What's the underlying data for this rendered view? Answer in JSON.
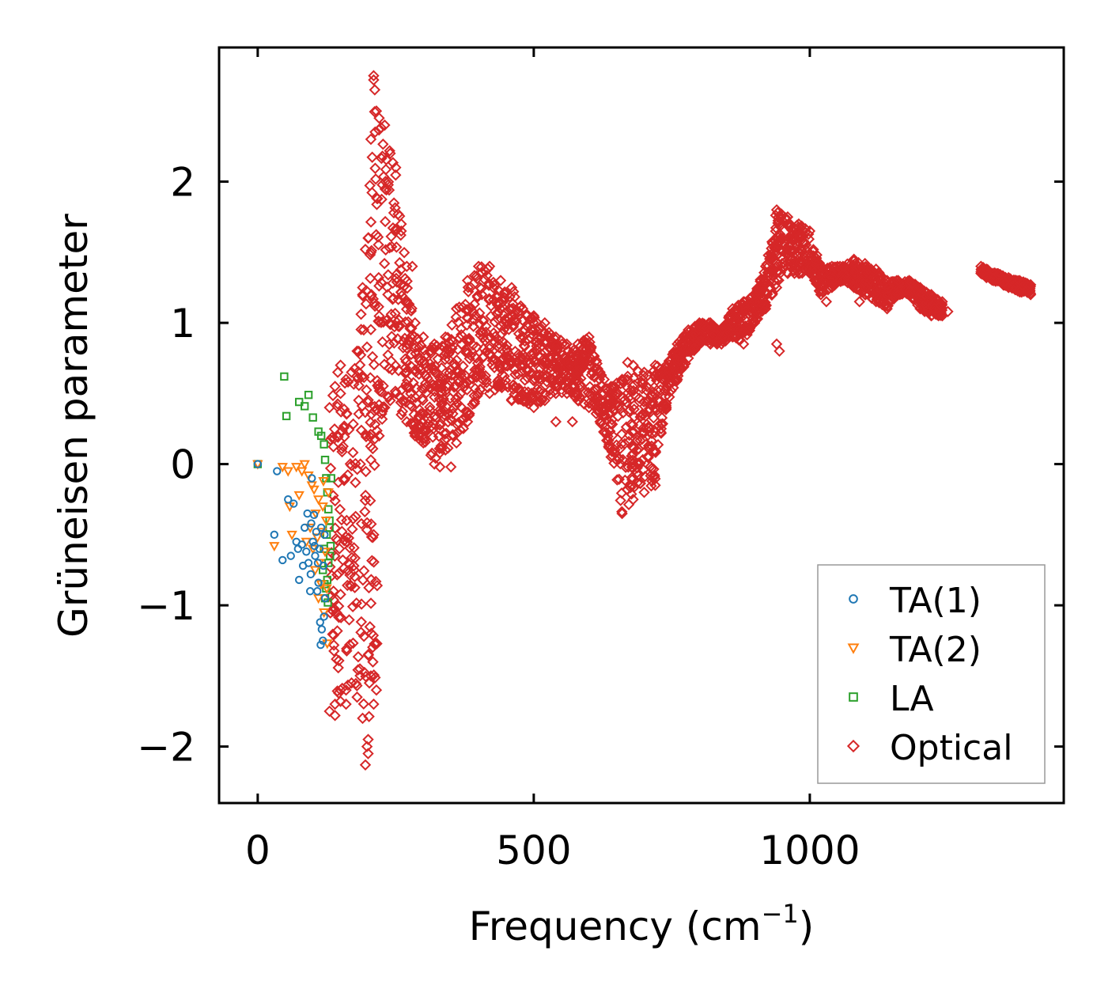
{
  "chart_data": {
    "type": "scatter",
    "title": "",
    "xlabel": "Frequency (cm",
    "xlabel_sup": "−1",
    "xlabel_end": ")",
    "ylabel": "Grüneisen parameter",
    "xlim": [
      -70,
      1460
    ],
    "ylim": [
      -2.4,
      2.95
    ],
    "xticks": [
      0,
      500,
      1000
    ],
    "xtick_labels": [
      "0",
      "500",
      "1000"
    ],
    "yticks": [
      -2,
      -1,
      0,
      1,
      2
    ],
    "ytick_labels": [
      "−2",
      "−1",
      "0",
      "1",
      "2"
    ],
    "grid": false,
    "legend_position": "lower-right",
    "series": [
      {
        "name": "TA(1)",
        "marker": "circle",
        "color": "#1f77b4",
        "points": [
          [
            0,
            0
          ],
          [
            35,
            -0.05
          ],
          [
            30,
            -0.5
          ],
          [
            45,
            -0.68
          ],
          [
            55,
            -0.25
          ],
          [
            65,
            -0.28
          ],
          [
            70,
            -0.55
          ],
          [
            75,
            -0.82
          ],
          [
            80,
            -0.57
          ],
          [
            85,
            -0.45
          ],
          [
            88,
            -0.62
          ],
          [
            90,
            -0.35
          ],
          [
            92,
            -0.7
          ],
          [
            95,
            -0.9
          ],
          [
            98,
            -0.1
          ],
          [
            100,
            -0.55
          ],
          [
            102,
            -0.36
          ],
          [
            104,
            -0.65
          ],
          [
            106,
            -0.48
          ],
          [
            108,
            -0.9
          ],
          [
            110,
            -0.84
          ],
          [
            112,
            -0.6
          ],
          [
            113,
            -1.12
          ],
          [
            115,
            -0.45
          ],
          [
            116,
            -1.17
          ],
          [
            118,
            -1.25
          ],
          [
            119,
            -0.72
          ],
          [
            120,
            -1.08
          ],
          [
            121,
            -0.5
          ],
          [
            122,
            -0.95
          ],
          [
            114,
            -1.28
          ],
          [
            109,
            -0.7
          ],
          [
            103,
            -0.58
          ],
          [
            96,
            -0.78
          ],
          [
            60,
            -0.65
          ],
          [
            73,
            -0.6
          ],
          [
            82,
            -0.72
          ],
          [
            97,
            -0.42
          ]
        ]
      },
      {
        "name": "TA(2)",
        "marker": "triangle",
        "color": "#ff7f0e",
        "points": [
          [
            0,
            0
          ],
          [
            30,
            -0.58
          ],
          [
            45,
            -0.02
          ],
          [
            55,
            -0.05
          ],
          [
            58,
            -0.3
          ],
          [
            62,
            -0.5
          ],
          [
            70,
            -0.02
          ],
          [
            75,
            -0.22
          ],
          [
            80,
            -0.05
          ],
          [
            85,
            0.0
          ],
          [
            88,
            -0.55
          ],
          [
            92,
            -0.08
          ],
          [
            95,
            -0.45
          ],
          [
            100,
            -0.6
          ],
          [
            102,
            -0.18
          ],
          [
            105,
            -0.35
          ],
          [
            108,
            -0.52
          ],
          [
            110,
            -0.25
          ],
          [
            112,
            -0.7
          ],
          [
            115,
            -0.85
          ],
          [
            118,
            -0.3
          ],
          [
            120,
            -1.05
          ],
          [
            122,
            -0.62
          ],
          [
            124,
            -0.4
          ],
          [
            126,
            -1.27
          ],
          [
            128,
            -0.2
          ],
          [
            110,
            -0.95
          ],
          [
            104,
            -0.75
          ],
          [
            98,
            -0.15
          ],
          [
            119,
            -0.12
          ],
          [
            125,
            -0.88
          ],
          [
            116,
            -0.48
          ]
        ]
      },
      {
        "name": "LA",
        "marker": "square",
        "color": "#2ca02c",
        "points": [
          [
            0,
            0
          ],
          [
            48,
            0.62
          ],
          [
            52,
            0.34
          ],
          [
            75,
            0.44
          ],
          [
            85,
            0.41
          ],
          [
            92,
            0.49
          ],
          [
            100,
            0.33
          ],
          [
            110,
            0.23
          ],
          [
            115,
            0.2
          ],
          [
            120,
            0.14
          ],
          [
            122,
            0.03
          ],
          [
            124,
            -0.1
          ],
          [
            126,
            -0.2
          ],
          [
            128,
            -0.32
          ],
          [
            130,
            -0.45
          ],
          [
            132,
            -0.58
          ],
          [
            128,
            -0.7
          ],
          [
            126,
            -0.82
          ],
          [
            124,
            -0.88
          ],
          [
            122,
            -0.95
          ],
          [
            125,
            -0.5
          ],
          [
            130,
            -0.4
          ],
          [
            118,
            -0.75
          ],
          [
            120,
            -0.6
          ],
          [
            133,
            -0.1
          ],
          [
            131,
            -0.65
          ],
          [
            127,
            -0.98
          ],
          [
            121,
            -0.85
          ]
        ]
      },
      {
        "name": "Optical",
        "marker": "diamond",
        "color": "#d62728",
        "envelope": [
          [
            130,
            0.4,
            -1.75
          ],
          [
            140,
            0.55,
            -1.7
          ],
          [
            150,
            0.5,
            -1.6
          ],
          [
            160,
            0.6,
            -1.6
          ],
          [
            170,
            0.65,
            -1.55
          ],
          [
            180,
            0.8,
            -1.65
          ],
          [
            190,
            1.2,
            -1.8
          ],
          [
            200,
            1.6,
            -1.95
          ],
          [
            205,
            2.3,
            -1.5
          ],
          [
            210,
            2.75,
            -1.7
          ],
          [
            215,
            2.5,
            -1.6
          ],
          [
            220,
            2.45,
            0.2
          ],
          [
            230,
            2.4,
            0.4
          ],
          [
            240,
            2.2,
            0.45
          ],
          [
            250,
            2.1,
            0.5
          ],
          [
            260,
            1.7,
            0.35
          ],
          [
            270,
            1.4,
            0.3
          ],
          [
            285,
            1.0,
            0.2
          ],
          [
            300,
            0.9,
            0.15
          ],
          [
            320,
            0.85,
            0.0
          ],
          [
            340,
            0.9,
            0.1
          ],
          [
            360,
            1.1,
            0.15
          ],
          [
            380,
            1.3,
            0.3
          ],
          [
            400,
            1.4,
            0.5
          ],
          [
            420,
            1.4,
            0.5
          ],
          [
            440,
            1.3,
            0.55
          ],
          [
            460,
            1.25,
            0.45
          ],
          [
            480,
            1.1,
            0.45
          ],
          [
            500,
            1.05,
            0.4
          ],
          [
            520,
            1.0,
            0.45
          ],
          [
            540,
            0.9,
            0.5
          ],
          [
            560,
            0.85,
            0.5
          ],
          [
            580,
            0.85,
            0.45
          ],
          [
            600,
            0.9,
            0.4
          ],
          [
            620,
            0.65,
            0.3
          ],
          [
            640,
            0.55,
            0.05
          ],
          [
            660,
            0.6,
            -0.35
          ],
          [
            680,
            0.7,
            -0.25
          ],
          [
            700,
            0.65,
            -0.2
          ],
          [
            720,
            0.7,
            -0.15
          ],
          [
            740,
            0.7,
            0.4
          ],
          [
            760,
            0.85,
            0.6
          ],
          [
            780,
            0.95,
            0.75
          ],
          [
            800,
            1.0,
            0.85
          ],
          [
            820,
            1.0,
            0.85
          ],
          [
            840,
            0.95,
            0.85
          ],
          [
            860,
            1.1,
            0.9
          ],
          [
            880,
            1.15,
            0.85
          ],
          [
            900,
            1.2,
            1.0
          ],
          [
            920,
            1.4,
            1.1
          ],
          [
            940,
            1.8,
            1.25
          ],
          [
            960,
            1.75,
            1.35
          ],
          [
            980,
            1.7,
            1.35
          ],
          [
            1000,
            1.65,
            1.35
          ],
          [
            1020,
            1.4,
            1.2
          ],
          [
            1040,
            1.4,
            1.25
          ],
          [
            1060,
            1.4,
            1.3
          ],
          [
            1080,
            1.45,
            1.25
          ],
          [
            1100,
            1.42,
            1.2
          ],
          [
            1120,
            1.38,
            1.15
          ],
          [
            1140,
            1.3,
            1.1
          ],
          [
            1160,
            1.3,
            1.2
          ],
          [
            1180,
            1.3,
            1.2
          ],
          [
            1200,
            1.25,
            1.1
          ],
          [
            1220,
            1.2,
            1.05
          ],
          [
            1240,
            1.15,
            1.05
          ],
          [
            1310,
            1.4,
            1.35
          ],
          [
            1320,
            1.38,
            1.32
          ],
          [
            1360,
            1.32,
            1.25
          ],
          [
            1380,
            1.3,
            1.22
          ],
          [
            1400,
            1.27,
            1.2
          ]
        ],
        "outliers": [
          [
            210,
            2.72
          ],
          [
            212,
            2.65
          ],
          [
            195,
            1.52
          ],
          [
            190,
            1.25
          ],
          [
            192,
            0.95
          ],
          [
            198,
            -2.0
          ],
          [
            195,
            -2.13
          ],
          [
            200,
            -2.05
          ],
          [
            185,
            -1.45
          ],
          [
            160,
            -1.7
          ],
          [
            140,
            -1.78
          ],
          [
            150,
            -1.68
          ],
          [
            330,
            -0.02
          ],
          [
            350,
            -0.02
          ],
          [
            330,
            0.08
          ],
          [
            540,
            0.3
          ],
          [
            570,
            0.3
          ],
          [
            600,
            0.7
          ],
          [
            670,
            0.72
          ],
          [
            740,
            0.62
          ],
          [
            940,
            0.85
          ],
          [
            945,
            0.8
          ],
          [
            1030,
            1.15
          ],
          [
            1090,
            1.15
          ],
          [
            1250,
            1.08
          ],
          [
            280,
            1.4
          ],
          [
            260,
            1.65
          ],
          [
            150,
            0.7
          ],
          [
            145,
            0.65
          ]
        ]
      }
    ]
  }
}
